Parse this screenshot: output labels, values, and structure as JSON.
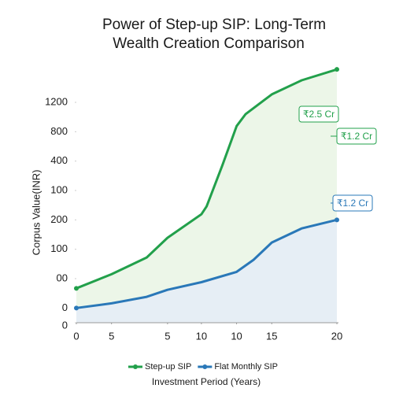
{
  "chart_data": {
    "type": "line",
    "title": [
      "Power of Step-up SIP: Long-Term",
      "Wealth Creation Comparison"
    ],
    "xlabel": "Investment Period (Years)",
    "ylabel": "Corpus Value(INR)",
    "xlim": [
      0,
      20
    ],
    "ylim": [
      -50,
      850
    ],
    "xticks": [
      0,
      {
        "value": 2.7,
        "label": "5"
      },
      {
        "value": 7,
        "label": "5"
      },
      {
        "value": 9.6,
        "label": "10"
      },
      {
        "value": 12.3,
        "label": "10"
      },
      15,
      20
    ],
    "yticks": [
      {
        "value": -50,
        "label": "0"
      },
      0,
      {
        "value": 100,
        "label": "00"
      },
      {
        "value": 200,
        "label": "100"
      },
      {
        "value": 300,
        "label": "200"
      },
      {
        "value": 400,
        "label": "100"
      },
      {
        "value": 500,
        "label": "400"
      },
      {
        "value": 600,
        "label": "800"
      },
      {
        "value": 700,
        "label": "1200"
      }
    ],
    "series": [
      {
        "name": "Step-up SIP",
        "color": "#22a04b",
        "fill": "#eaf5e6",
        "x": [
          0,
          2.7,
          5.4,
          7,
          9.6,
          10,
          11.2,
          12.3,
          13,
          15,
          17.3,
          20
        ],
        "values": [
          67,
          115,
          172,
          239,
          319,
          346,
          485,
          619,
          660,
          727,
          775,
          812
        ]
      },
      {
        "name": "Flat Monthly SIP",
        "color": "#2a78b8",
        "fill": "#e6edf6",
        "x": [
          0,
          2.7,
          5.4,
          7,
          9.6,
          12.3,
          13.6,
          15,
          17.3,
          20
        ],
        "values": [
          0,
          16,
          38,
          62,
          88,
          123,
          164,
          223,
          271,
          300
        ]
      }
    ],
    "annotations": [
      {
        "text": "₹2.5 Cr",
        "color": "#22a04b"
      },
      {
        "text": "₹1.2 Cr",
        "color": "#22a04b"
      },
      {
        "text": "₹1.2 Cr",
        "color": "#2a78b8"
      }
    ]
  }
}
